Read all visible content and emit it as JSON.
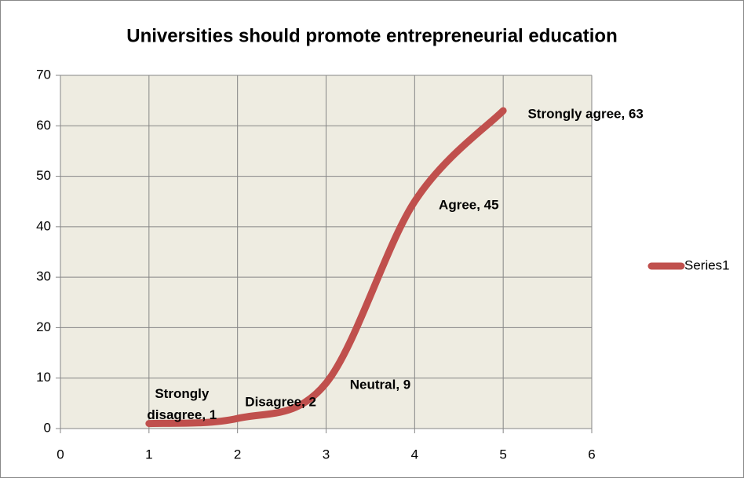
{
  "chart_data": {
    "type": "line",
    "smooth": true,
    "title": "Universities should promote entrepreneurial education",
    "x": [
      1,
      2,
      3,
      4,
      5
    ],
    "series": [
      {
        "name": "Series1",
        "color": "#c0504d",
        "values": [
          1,
          2,
          9,
          45,
          63
        ],
        "value_labels": [
          "Strongly disagree, 1",
          "Disagree, 2",
          "Neutral, 9",
          "Agree, 45",
          "Strongly agree, 63"
        ]
      }
    ],
    "xlim": [
      0,
      6
    ],
    "xticks": [
      0,
      1,
      2,
      3,
      4,
      5,
      6
    ],
    "ylim": [
      0,
      70
    ],
    "yticks": [
      0,
      10,
      20,
      30,
      40,
      50,
      60,
      70
    ],
    "grid": true,
    "legend": "right"
  }
}
